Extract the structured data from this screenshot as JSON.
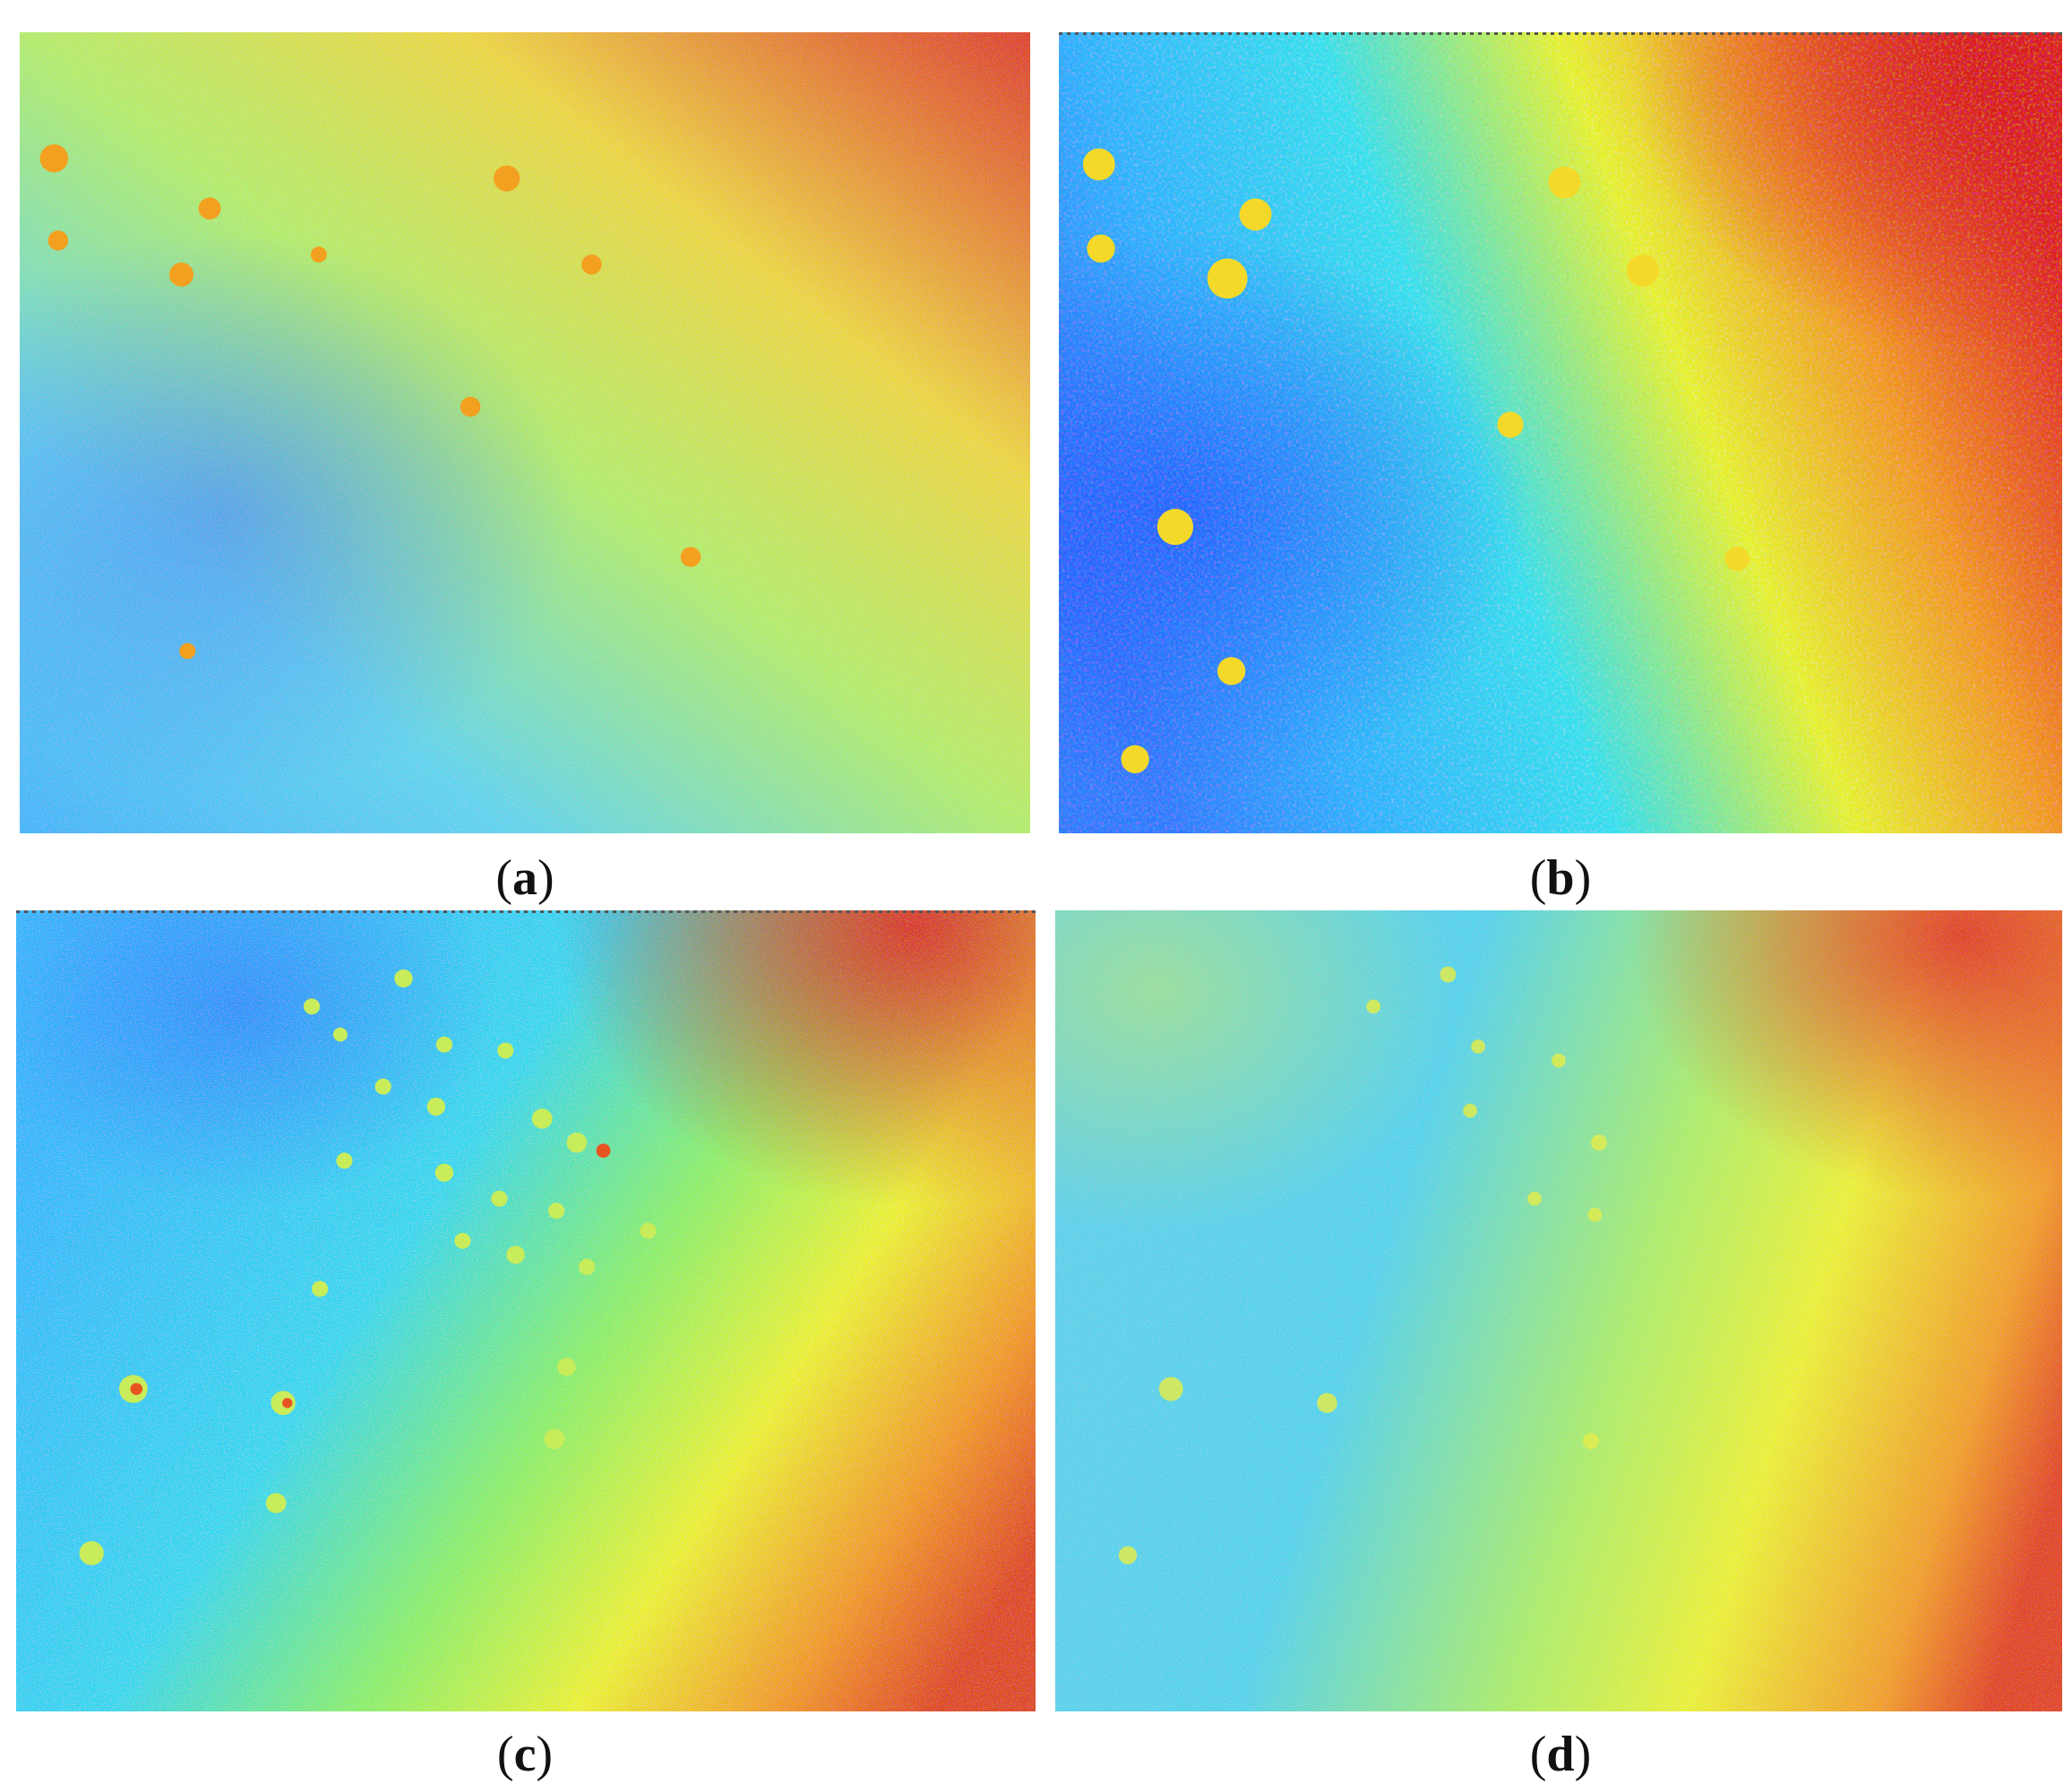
{
  "figure": {
    "panels": [
      {
        "id": "a",
        "caption_open": "(",
        "caption_letter": "a",
        "caption_close": ")"
      },
      {
        "id": "b",
        "caption_open": "(",
        "caption_letter": "b",
        "caption_close": ")"
      },
      {
        "id": "c",
        "caption_open": "(",
        "caption_letter": "c",
        "caption_close": ")"
      },
      {
        "id": "d",
        "caption_open": "(",
        "caption_letter": "d",
        "caption_close": ")"
      }
    ],
    "colormap": {
      "name": "jet",
      "blue": "#1e3cff",
      "cyan": "#2ee6f0",
      "green": "#9ef07a",
      "yellow": "#f5f22a",
      "orange": "#f39a1f",
      "red": "#e0261c"
    }
  }
}
